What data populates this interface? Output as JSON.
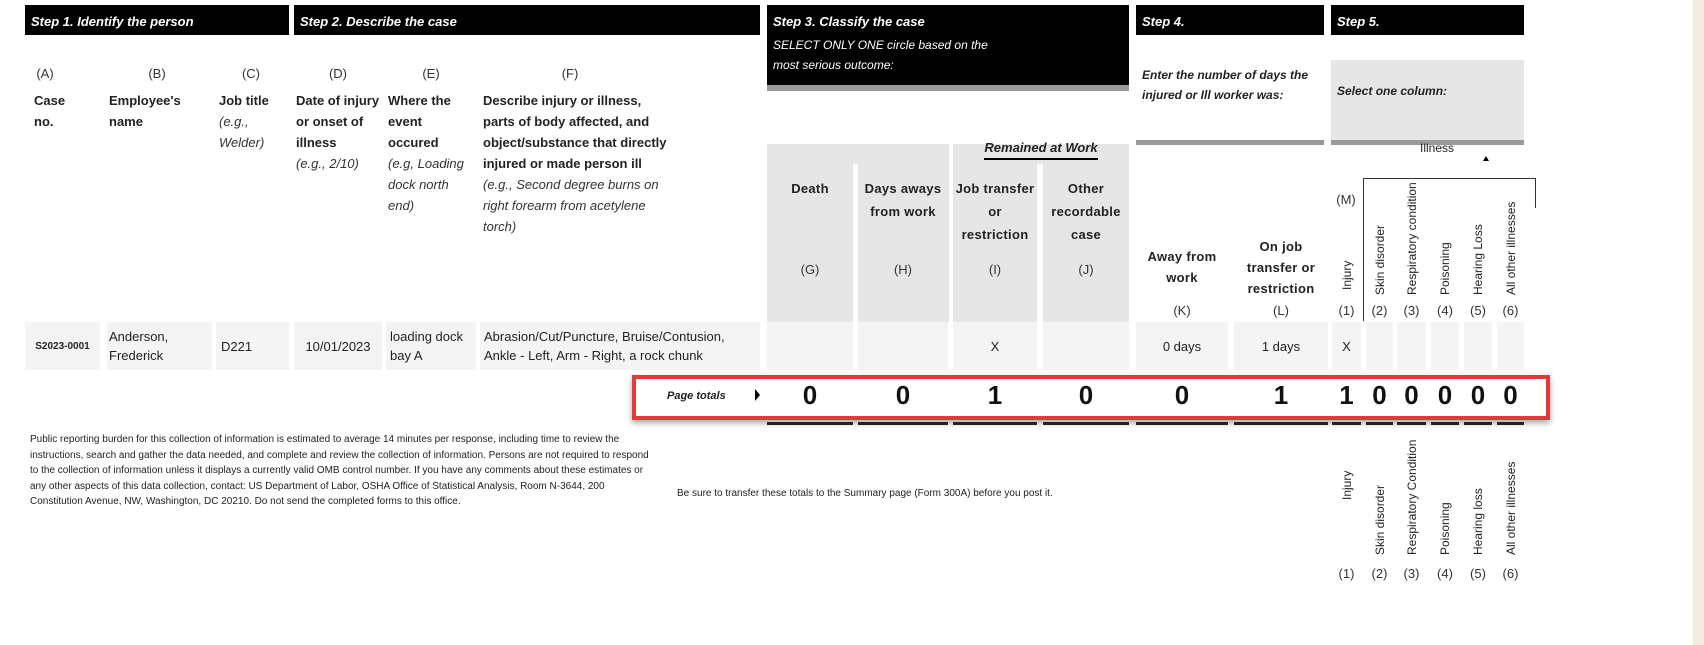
{
  "steps": {
    "step1": "Step 1. Identify the person",
    "step2": "Step 2. Describe the case",
    "step3": "Step 3. Classify the case",
    "step3_sub": "SELECT ONLY ONE circle based on the most serious outcome:",
    "step4": "Step 4.",
    "step4_sub": "Enter the number of days the injured or Ill worker was:",
    "step5": "Step 5.",
    "step5_sub": "Select one column:"
  },
  "columns": {
    "A": {
      "letter": "(A)",
      "title": "Case no."
    },
    "B": {
      "letter": "(B)",
      "title": "Employee's name"
    },
    "C": {
      "letter": "(C)",
      "title": "Job title",
      "hint": "(e.g., Welder)"
    },
    "D": {
      "letter": "(D)",
      "title": "Date of injury or onset of illness",
      "hint": "(e.g., 2/10)"
    },
    "E": {
      "letter": "(E)",
      "title": "Where the event occured",
      "hint": "(e.g, Loading dock north end)"
    },
    "F": {
      "letter": "(F)",
      "title": "Describe injury or illness, parts of body affected, and object/substance that directly injured or made person ill",
      "hint": "(e.g., Second degree burns on right forearm from acetylene torch)"
    },
    "remained_at_work": "Remained at Work",
    "G": {
      "letter": "(G)",
      "title": "Death"
    },
    "H": {
      "letter": "(H)",
      "title": "Days aways from work"
    },
    "I": {
      "letter": "(I)",
      "title": "Job transfer or restriction"
    },
    "J": {
      "letter": "(J)",
      "title": "Other recordable case"
    },
    "K": {
      "letter": "(K)",
      "title": "Away from work"
    },
    "L": {
      "letter": "(L)",
      "title": "On job transfer or restriction"
    },
    "M": {
      "letter": "(M)",
      "illness_label": "Illness",
      "types": [
        {
          "num": "(1)",
          "label": "Injury"
        },
        {
          "num": "(2)",
          "label": "Skin disorder"
        },
        {
          "num": "(3)",
          "label": "Respiratory condition"
        },
        {
          "num": "(4)",
          "label": "Poisoning"
        },
        {
          "num": "(5)",
          "label": "Hearing Loss"
        },
        {
          "num": "(6)",
          "label": "All other illnesses"
        }
      ]
    }
  },
  "row": {
    "case_no": "S2023-0001",
    "name": "Anderson, Frederick",
    "job": "D221",
    "date": "10/01/2023",
    "where": "loading dock bay A",
    "describe": "Abrasion/Cut/Puncture, Bruise/Contusion, Ankle - Left, Arm - Right, a rock chunk",
    "G": "",
    "H": "",
    "I": "X",
    "J": "",
    "K": "0 days",
    "L": "1 days",
    "M1": "X",
    "M2": "",
    "M3": "",
    "M4": "",
    "M5": "",
    "M6": ""
  },
  "totals": {
    "label": "Page totals",
    "G": "0",
    "H": "0",
    "I": "1",
    "J": "0",
    "K": "0",
    "L": "1",
    "M1": "1",
    "M2": "0",
    "M3": "0",
    "M4": "0",
    "M5": "0",
    "M6": "0"
  },
  "footer": {
    "burden": "Public reporting burden for this collection of information is estimated to average 14 minutes per response, including time to review the instructions, search and gather the data needed, and complete and review the collection of information. Persons are not required to respond to the collection of information unless it displays a currently valid OMB control number. If you have any comments about these estimates or any other aspects of this data collection, contact: US Department of Labor, OSHA Office of Statistical Analysis, Room N-3644, 200 Constitution Avenue, NW, Washington, DC 20210. Do not send the completed forms to this office.",
    "transfer": "Be sure to transfer these totals to the Summary page (Form 300A) before you post it.",
    "bottom_labels": [
      {
        "num": "(1)",
        "label": "Injury"
      },
      {
        "num": "(2)",
        "label": "Skin disorder"
      },
      {
        "num": "(3)",
        "label": "Respiratory Condition"
      },
      {
        "num": "(4)",
        "label": "Poisoning"
      },
      {
        "num": "(5)",
        "label": "Hearing loss"
      },
      {
        "num": "(6)",
        "label": "All other illnesses"
      }
    ]
  },
  "colors": {
    "highlight": "#e5383b",
    "header": "#000000",
    "shade": "#e6e6e6"
  }
}
